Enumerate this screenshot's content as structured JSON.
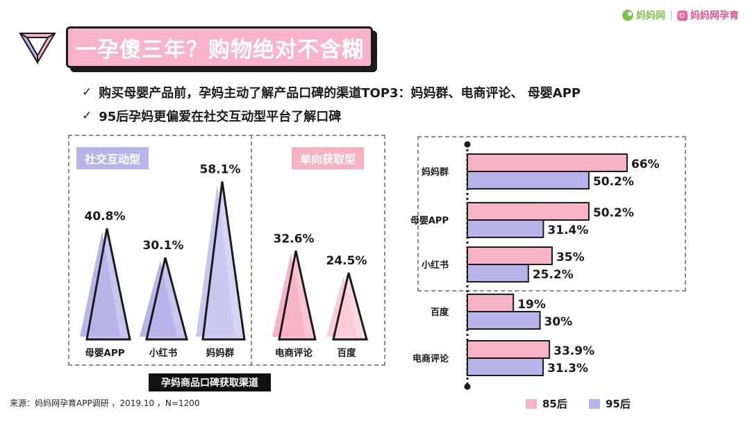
{
  "brand": {
    "name_a": "妈妈网",
    "name_b": "妈妈网孕育"
  },
  "title": "一孕傻三年？购物绝对不含糊",
  "bullets": [
    "购买母婴产品前，孕妈主动了解产品口碑的渠道TOP3：妈妈群、电商评论、 母婴APP",
    "95后孕妈更偏爱在社交互动型平台了解口碑"
  ],
  "colors": {
    "pink": "#f5b3c4",
    "purple": "#b6b4e8",
    "dark": "#1a1a1a"
  },
  "chart_data": [
    {
      "type": "bar",
      "variant": "triangle-columns",
      "groups": [
        {
          "name": "社交互动型",
          "categories": [
            "母婴APP",
            "小红书",
            "妈妈群"
          ],
          "values": [
            40.8,
            30.1,
            58.1
          ],
          "value_labels": [
            "40.8%",
            "30.1%",
            "58.1%"
          ]
        },
        {
          "name": "单向获取型",
          "categories": [
            "电商评论",
            "百度"
          ],
          "values": [
            32.6,
            24.5
          ],
          "value_labels": [
            "32.6%",
            "24.5%"
          ]
        }
      ],
      "caption": "孕妈商品口碑获取渠道",
      "xlabel": "",
      "ylabel": "",
      "ylim": [
        0,
        60
      ]
    },
    {
      "type": "bar",
      "orientation": "horizontal",
      "categories": [
        "妈妈群",
        "母婴APP",
        "小红书",
        "百度",
        "电商评论"
      ],
      "series": [
        {
          "name": "85后",
          "values": [
            66,
            50.2,
            35,
            19,
            33.9
          ],
          "value_labels": [
            "66%",
            "50.2%",
            "35%",
            "19%",
            "33.9%"
          ]
        },
        {
          "name": "95后",
          "values": [
            50.2,
            31.4,
            25.2,
            30,
            31.3
          ],
          "value_labels": [
            "50.2%",
            "31.4%",
            "25.2%",
            "30%",
            "31.3%"
          ]
        }
      ],
      "xlim": [
        0,
        70
      ],
      "legend": "bottom"
    }
  ],
  "footer": "来源：妈妈网孕育APP调研 ，2019.10 ，N=1200"
}
